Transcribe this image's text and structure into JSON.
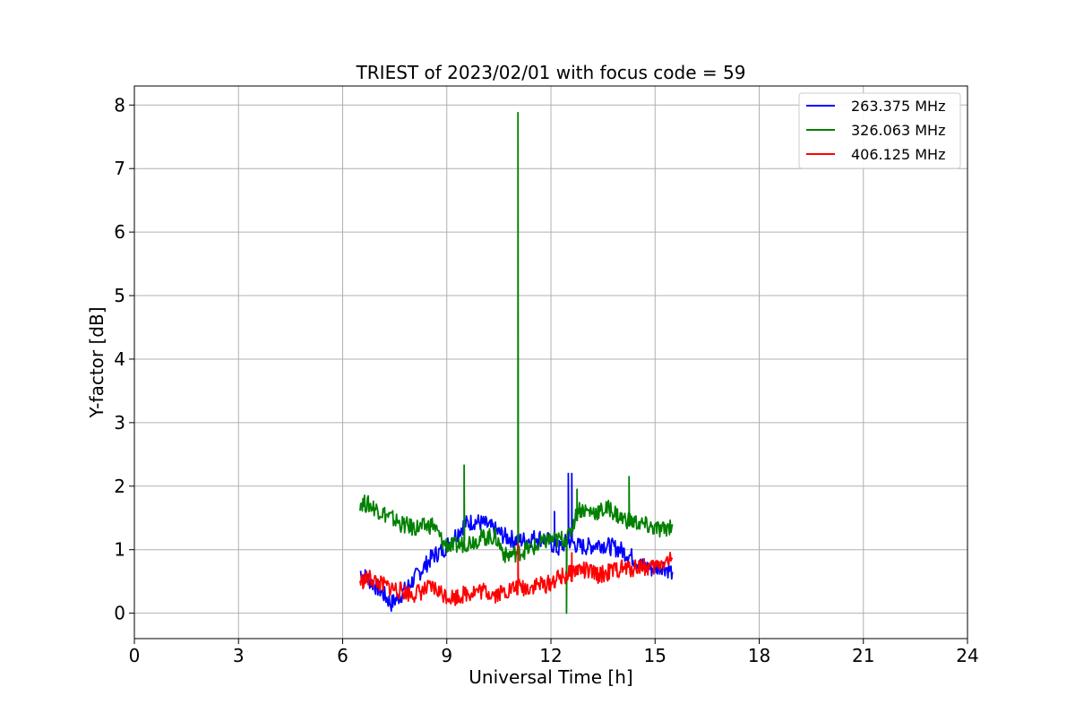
{
  "chart_data": {
    "type": "line",
    "title": "TRIEST of 2023/02/01 with focus code = 59",
    "xlabel": "Universal Time [h]",
    "ylabel": "Y-factor [dB]",
    "xlim": [
      0,
      24
    ],
    "ylim": [
      -0.4,
      8.3
    ],
    "xticks": [
      0,
      3,
      6,
      9,
      12,
      15,
      18,
      21,
      24
    ],
    "yticks": [
      0,
      1,
      2,
      3,
      4,
      5,
      6,
      7,
      8
    ],
    "grid": true,
    "legend_position": "top-right",
    "series": [
      {
        "name": "263.375 MHz",
        "color": "#0000ff",
        "x": [
          6.5,
          6.8,
          7.1,
          7.4,
          7.7,
          8.0,
          8.3,
          8.6,
          8.9,
          9.2,
          9.5,
          9.8,
          10.1,
          10.4,
          10.7,
          11.0,
          11.3,
          11.6,
          11.9,
          12.2,
          12.5,
          12.8,
          13.1,
          13.4,
          13.7,
          14.0,
          14.3,
          14.6,
          14.9,
          15.2,
          15.5
        ],
        "y": [
          0.65,
          0.5,
          0.35,
          0.15,
          0.3,
          0.5,
          0.7,
          0.9,
          1.0,
          1.2,
          1.4,
          1.45,
          1.4,
          1.3,
          1.2,
          1.15,
          1.15,
          1.2,
          1.15,
          1.0,
          1.15,
          1.05,
          1.05,
          1.1,
          1.05,
          1.0,
          0.9,
          0.75,
          0.7,
          0.75,
          0.65
        ],
        "spikes": [
          {
            "x": 12.5,
            "y": 2.2
          },
          {
            "x": 12.6,
            "y": 2.2
          },
          {
            "x": 12.1,
            "y": 1.6
          }
        ]
      },
      {
        "name": "326.063 MHz",
        "color": "#008000",
        "x": [
          6.5,
          6.8,
          7.1,
          7.4,
          7.7,
          8.0,
          8.3,
          8.6,
          8.9,
          9.2,
          9.5,
          9.8,
          10.1,
          10.4,
          10.7,
          11.0,
          11.3,
          11.6,
          11.9,
          12.2,
          12.5,
          12.8,
          13.1,
          13.4,
          13.7,
          14.0,
          14.3,
          14.6,
          14.9,
          15.2,
          15.5
        ],
        "y": [
          1.75,
          1.7,
          1.6,
          1.5,
          1.4,
          1.35,
          1.35,
          1.4,
          1.1,
          1.05,
          1.1,
          1.15,
          1.2,
          1.2,
          0.9,
          0.95,
          1.0,
          1.05,
          1.15,
          1.15,
          1.2,
          1.65,
          1.6,
          1.6,
          1.65,
          1.5,
          1.45,
          1.4,
          1.35,
          1.3,
          1.4
        ],
        "spikes": [
          {
            "x": 9.5,
            "y": 2.33
          },
          {
            "x": 11.05,
            "y": 7.88
          },
          {
            "x": 12.45,
            "y": 0.0
          },
          {
            "x": 12.75,
            "y": 1.95
          },
          {
            "x": 14.25,
            "y": 2.15
          }
        ]
      },
      {
        "name": "406.125 MHz",
        "color": "#ff0000",
        "x": [
          6.5,
          6.8,
          7.1,
          7.4,
          7.7,
          8.0,
          8.3,
          8.6,
          8.9,
          9.2,
          9.5,
          9.8,
          10.1,
          10.4,
          10.7,
          11.0,
          11.3,
          11.6,
          11.9,
          12.2,
          12.5,
          12.8,
          13.1,
          13.4,
          13.7,
          14.0,
          14.3,
          14.6,
          14.9,
          15.2,
          15.5
        ],
        "y": [
          0.5,
          0.55,
          0.45,
          0.4,
          0.35,
          0.3,
          0.35,
          0.4,
          0.3,
          0.25,
          0.3,
          0.35,
          0.35,
          0.3,
          0.35,
          0.4,
          0.4,
          0.45,
          0.45,
          0.55,
          0.6,
          0.7,
          0.65,
          0.6,
          0.65,
          0.7,
          0.7,
          0.75,
          0.7,
          0.8,
          0.85
        ],
        "spikes": [
          {
            "x": 11.05,
            "y": 1.1
          },
          {
            "x": 12.6,
            "y": 0.95
          }
        ]
      }
    ]
  }
}
